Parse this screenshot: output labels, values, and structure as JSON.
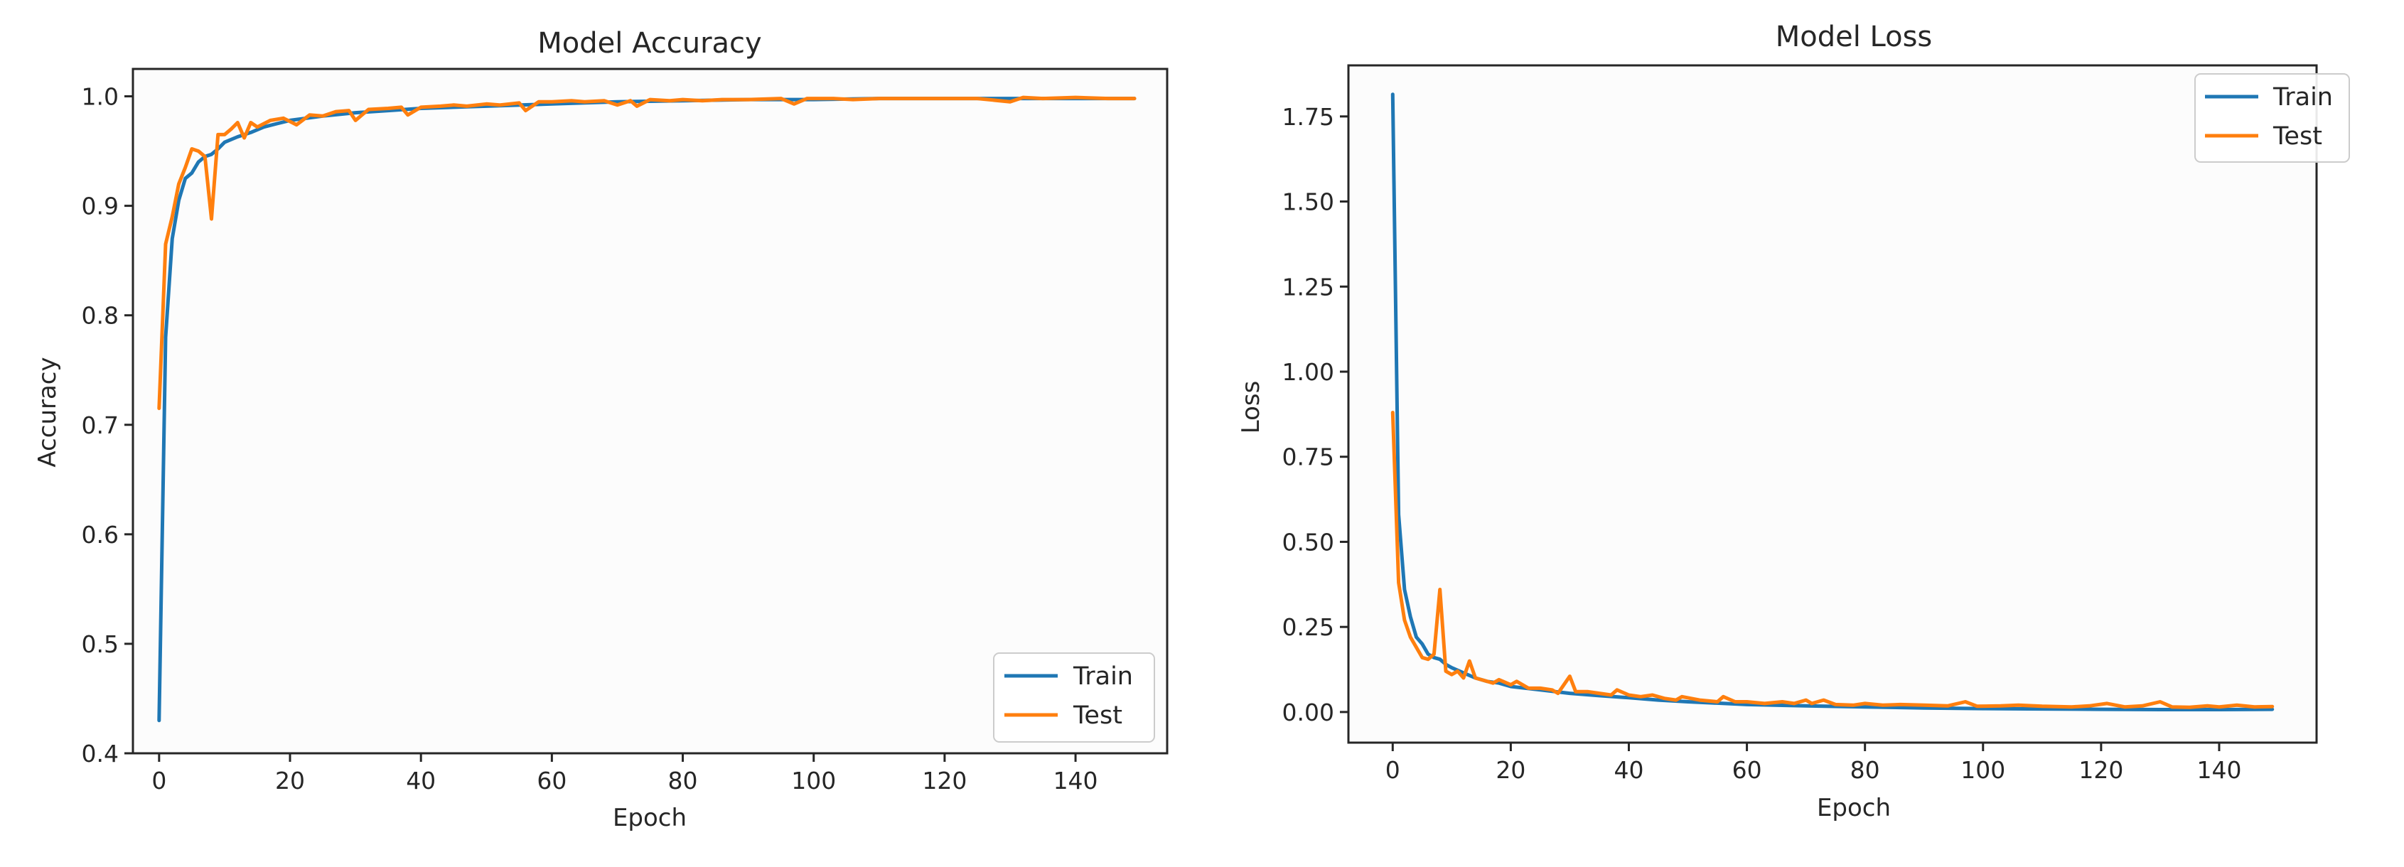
{
  "colors": {
    "train": "#1f77b4",
    "test": "#ff7f0e",
    "background": "#fcfcfc",
    "axes": "#262626"
  },
  "chart_data": [
    {
      "type": "line",
      "title": "Model Accuracy",
      "xlabel": "Epoch",
      "ylabel": "Accuracy",
      "xlim": [
        -4,
        154
      ],
      "ylim": [
        0.4,
        1.025
      ],
      "xticks": [
        0,
        20,
        40,
        60,
        80,
        100,
        120,
        140
      ],
      "yticks": [
        0.4,
        0.5,
        0.6,
        0.7,
        0.8,
        0.9,
        1.0
      ],
      "ytick_labels": [
        "0.4",
        "0.5",
        "0.6",
        "0.7",
        "0.8",
        "0.9",
        "1.0"
      ],
      "legend_position": "lower-right",
      "grid": false,
      "series": [
        {
          "name": "Train",
          "color": "#1f77b4",
          "points": [
            [
              0,
              0.43
            ],
            [
              1,
              0.78
            ],
            [
              2,
              0.87
            ],
            [
              3,
              0.905
            ],
            [
              4,
              0.925
            ],
            [
              5,
              0.93
            ],
            [
              6,
              0.94
            ],
            [
              7,
              0.945
            ],
            [
              8,
              0.947
            ],
            [
              9,
              0.952
            ],
            [
              10,
              0.958
            ],
            [
              12,
              0.963
            ],
            [
              14,
              0.967
            ],
            [
              16,
              0.972
            ],
            [
              18,
              0.975
            ],
            [
              20,
              0.978
            ],
            [
              25,
              0.982
            ],
            [
              30,
              0.985
            ],
            [
              35,
              0.987
            ],
            [
              40,
              0.989
            ],
            [
              50,
              0.991
            ],
            [
              60,
              0.993
            ],
            [
              70,
              0.995
            ],
            [
              80,
              0.996
            ],
            [
              90,
              0.997
            ],
            [
              100,
              0.997
            ],
            [
              110,
              0.998
            ],
            [
              120,
              0.998
            ],
            [
              130,
              0.998
            ],
            [
              140,
              0.998
            ],
            [
              149,
              0.998
            ]
          ]
        },
        {
          "name": "Test",
          "color": "#ff7f0e",
          "points": [
            [
              0,
              0.715
            ],
            [
              1,
              0.865
            ],
            [
              2,
              0.89
            ],
            [
              3,
              0.92
            ],
            [
              4,
              0.935
            ],
            [
              5,
              0.952
            ],
            [
              6,
              0.95
            ],
            [
              7,
              0.945
            ],
            [
              8,
              0.888
            ],
            [
              9,
              0.965
            ],
            [
              10,
              0.965
            ],
            [
              11,
              0.97
            ],
            [
              12,
              0.976
            ],
            [
              13,
              0.962
            ],
            [
              14,
              0.976
            ],
            [
              15,
              0.972
            ],
            [
              17,
              0.978
            ],
            [
              19,
              0.98
            ],
            [
              21,
              0.974
            ],
            [
              23,
              0.983
            ],
            [
              25,
              0.982
            ],
            [
              27,
              0.986
            ],
            [
              29,
              0.987
            ],
            [
              30,
              0.978
            ],
            [
              32,
              0.988
            ],
            [
              35,
              0.989
            ],
            [
              37,
              0.99
            ],
            [
              38,
              0.983
            ],
            [
              40,
              0.99
            ],
            [
              43,
              0.991
            ],
            [
              45,
              0.992
            ],
            [
              47,
              0.991
            ],
            [
              50,
              0.993
            ],
            [
              52,
              0.992
            ],
            [
              55,
              0.994
            ],
            [
              56,
              0.987
            ],
            [
              58,
              0.995
            ],
            [
              60,
              0.995
            ],
            [
              63,
              0.996
            ],
            [
              65,
              0.995
            ],
            [
              68,
              0.996
            ],
            [
              70,
              0.992
            ],
            [
              72,
              0.996
            ],
            [
              73,
              0.991
            ],
            [
              75,
              0.997
            ],
            [
              78,
              0.996
            ],
            [
              80,
              0.997
            ],
            [
              83,
              0.996
            ],
            [
              86,
              0.997
            ],
            [
              90,
              0.997
            ],
            [
              95,
              0.998
            ],
            [
              97,
              0.993
            ],
            [
              99,
              0.998
            ],
            [
              103,
              0.998
            ],
            [
              106,
              0.997
            ],
            [
              110,
              0.998
            ],
            [
              115,
              0.998
            ],
            [
              120,
              0.998
            ],
            [
              125,
              0.998
            ],
            [
              130,
              0.995
            ],
            [
              132,
              0.999
            ],
            [
              135,
              0.998
            ],
            [
              140,
              0.999
            ],
            [
              145,
              0.998
            ],
            [
              149,
              0.998
            ]
          ]
        }
      ]
    },
    {
      "type": "line",
      "title": "Model Loss",
      "xlabel": "Epoch",
      "ylabel": "Loss",
      "xlim": [
        -7.5,
        156.5
      ],
      "ylim": [
        -0.09,
        1.9
      ],
      "xticks": [
        0,
        20,
        40,
        60,
        80,
        100,
        120,
        140
      ],
      "yticks": [
        0.0,
        0.25,
        0.5,
        0.75,
        1.0,
        1.25,
        1.5,
        1.75
      ],
      "ytick_labels": [
        "0.00",
        "0.25",
        "0.50",
        "0.75",
        "1.00",
        "1.25",
        "1.50",
        "1.75"
      ],
      "legend_position": "upper-right",
      "grid": false,
      "series": [
        {
          "name": "Train",
          "color": "#1f77b4",
          "points": [
            [
              0,
              1.815
            ],
            [
              1,
              0.58
            ],
            [
              2,
              0.36
            ],
            [
              3,
              0.28
            ],
            [
              4,
              0.22
            ],
            [
              5,
              0.2
            ],
            [
              6,
              0.17
            ],
            [
              7,
              0.16
            ],
            [
              8,
              0.155
            ],
            [
              9,
              0.14
            ],
            [
              10,
              0.13
            ],
            [
              12,
              0.115
            ],
            [
              14,
              0.1
            ],
            [
              16,
              0.09
            ],
            [
              18,
              0.085
            ],
            [
              20,
              0.075
            ],
            [
              25,
              0.065
            ],
            [
              30,
              0.055
            ],
            [
              35,
              0.048
            ],
            [
              40,
              0.042
            ],
            [
              45,
              0.035
            ],
            [
              50,
              0.03
            ],
            [
              60,
              0.022
            ],
            [
              70,
              0.018
            ],
            [
              80,
              0.015
            ],
            [
              90,
              0.012
            ],
            [
              100,
              0.01
            ],
            [
              110,
              0.009
            ],
            [
              120,
              0.008
            ],
            [
              130,
              0.007
            ],
            [
              140,
              0.007
            ],
            [
              149,
              0.008
            ]
          ]
        },
        {
          "name": "Test",
          "color": "#ff7f0e",
          "points": [
            [
              0,
              0.88
            ],
            [
              1,
              0.38
            ],
            [
              2,
              0.27
            ],
            [
              3,
              0.22
            ],
            [
              4,
              0.19
            ],
            [
              5,
              0.16
            ],
            [
              6,
              0.155
            ],
            [
              7,
              0.17
            ],
            [
              8,
              0.36
            ],
            [
              9,
              0.12
            ],
            [
              10,
              0.11
            ],
            [
              11,
              0.12
            ],
            [
              12,
              0.1
            ],
            [
              13,
              0.15
            ],
            [
              14,
              0.1
            ],
            [
              15,
              0.095
            ],
            [
              17,
              0.085
            ],
            [
              18,
              0.095
            ],
            [
              20,
              0.08
            ],
            [
              21,
              0.09
            ],
            [
              23,
              0.07
            ],
            [
              25,
              0.07
            ],
            [
              27,
              0.065
            ],
            [
              28,
              0.055
            ],
            [
              30,
              0.105
            ],
            [
              31,
              0.06
            ],
            [
              33,
              0.06
            ],
            [
              35,
              0.055
            ],
            [
              37,
              0.05
            ],
            [
              38,
              0.065
            ],
            [
              40,
              0.05
            ],
            [
              42,
              0.045
            ],
            [
              44,
              0.05
            ],
            [
              46,
              0.04
            ],
            [
              48,
              0.035
            ],
            [
              49,
              0.045
            ],
            [
              52,
              0.035
            ],
            [
              55,
              0.03
            ],
            [
              56,
              0.045
            ],
            [
              58,
              0.03
            ],
            [
              60,
              0.03
            ],
            [
              63,
              0.025
            ],
            [
              66,
              0.03
            ],
            [
              68,
              0.025
            ],
            [
              70,
              0.035
            ],
            [
              71,
              0.025
            ],
            [
              73,
              0.035
            ],
            [
              75,
              0.022
            ],
            [
              78,
              0.02
            ],
            [
              80,
              0.025
            ],
            [
              83,
              0.02
            ],
            [
              86,
              0.022
            ],
            [
              90,
              0.02
            ],
            [
              94,
              0.018
            ],
            [
              97,
              0.03
            ],
            [
              99,
              0.017
            ],
            [
              103,
              0.018
            ],
            [
              106,
              0.02
            ],
            [
              110,
              0.017
            ],
            [
              115,
              0.015
            ],
            [
              118,
              0.018
            ],
            [
              121,
              0.025
            ],
            [
              124,
              0.015
            ],
            [
              127,
              0.018
            ],
            [
              130,
              0.03
            ],
            [
              132,
              0.015
            ],
            [
              135,
              0.014
            ],
            [
              138,
              0.018
            ],
            [
              140,
              0.015
            ],
            [
              143,
              0.02
            ],
            [
              146,
              0.015
            ],
            [
              149,
              0.016
            ]
          ]
        }
      ]
    }
  ]
}
